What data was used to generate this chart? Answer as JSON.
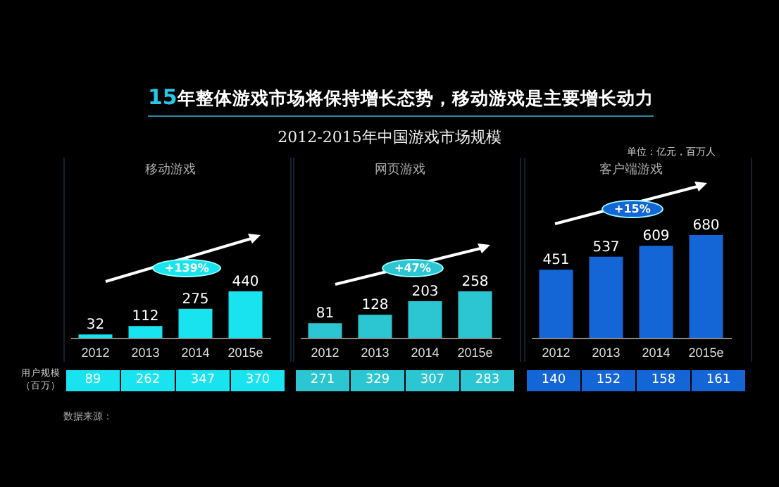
{
  "chart_data": [
    {
      "type": "bar",
      "title": "移动游戏",
      "categories": [
        "2012",
        "2013",
        "2014",
        "2015e"
      ],
      "values": [
        32,
        112,
        275,
        440
      ],
      "color": "#19e3ef",
      "data_labels": true,
      "annotations": [
        "15年整体游戏市场将保持增长态势，移动游戏是主要增长动力",
        "2012-2015年中国游戏市场规模",
        "单位：亿元，百万人",
        "+139%",
        "用户规模（百万）",
        "数据来源：",
        "89",
        "262",
        "347",
        "370"
      ]
    },
    {
      "type": "bar",
      "title": "网页游戏",
      "categories": [
        "2012",
        "2013",
        "2014",
        "2015e"
      ],
      "values": [
        81,
        128,
        203,
        258
      ],
      "color": "#2cc6d2",
      "data_labels": true,
      "annotations": [
        "+47%",
        "271",
        "329",
        "307",
        "283"
      ]
    },
    {
      "type": "bar",
      "title": "客户端游戏",
      "categories": [
        "2012",
        "2013",
        "2014",
        "2015e"
      ],
      "values": [
        451,
        537,
        609,
        680
      ],
      "color": "#1466d6",
      "data_labels": true,
      "annotations": [
        "+15%",
        "140",
        "152",
        "158",
        "161"
      ]
    }
  ]
}
